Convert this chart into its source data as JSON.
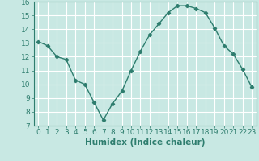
{
  "x": [
    0,
    1,
    2,
    3,
    4,
    5,
    6,
    7,
    8,
    9,
    10,
    11,
    12,
    13,
    14,
    15,
    16,
    17,
    18,
    19,
    20,
    21,
    22,
    23
  ],
  "y": [
    13.1,
    12.8,
    12.0,
    11.8,
    10.3,
    10.0,
    8.7,
    7.4,
    8.6,
    9.5,
    11.0,
    12.4,
    13.6,
    14.4,
    15.2,
    15.7,
    15.7,
    15.5,
    15.2,
    14.1,
    12.8,
    12.2,
    11.1,
    9.8
  ],
  "line_color": "#2e7d6e",
  "bg_color": "#c8e8e3",
  "grid_color": "#ffffff",
  "xlabel": "Humidex (Indice chaleur)",
  "xlim": [
    -0.5,
    23.5
  ],
  "ylim": [
    7,
    16
  ],
  "yticks": [
    7,
    8,
    9,
    10,
    11,
    12,
    13,
    14,
    15,
    16
  ],
  "xticks": [
    0,
    1,
    2,
    3,
    4,
    5,
    6,
    7,
    8,
    9,
    10,
    11,
    12,
    13,
    14,
    15,
    16,
    17,
    18,
    19,
    20,
    21,
    22,
    23
  ],
  "marker": "D",
  "markersize": 2.2,
  "linewidth": 1.0,
  "xlabel_fontsize": 7.5,
  "tick_fontsize": 6.5
}
